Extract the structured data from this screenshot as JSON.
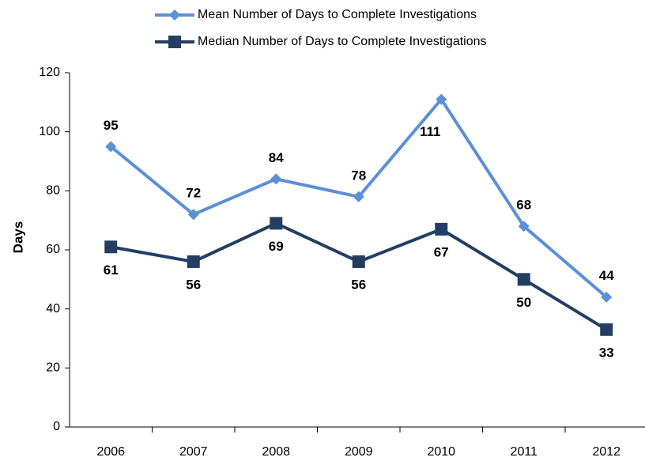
{
  "chart_data": {
    "type": "line",
    "y_label": "Days",
    "categories": [
      "2006",
      "2007",
      "2008",
      "2009",
      "2010",
      "2011",
      "2012"
    ],
    "series": [
      {
        "name": "Mean Number of Days to Complete Investigations",
        "color": "#5b8fd6",
        "marker": "diamond",
        "values": [
          95,
          72,
          84,
          78,
          111,
          68,
          44
        ]
      },
      {
        "name": "Median Number of Days to Complete Investigations",
        "color": "#243e63",
        "marker": "square",
        "values": [
          61,
          56,
          69,
          56,
          67,
          50,
          33
        ]
      }
    ],
    "ylim": [
      0,
      120
    ],
    "yticks": [
      0,
      20,
      40,
      60,
      80,
      100,
      120
    ],
    "legend": "top"
  }
}
